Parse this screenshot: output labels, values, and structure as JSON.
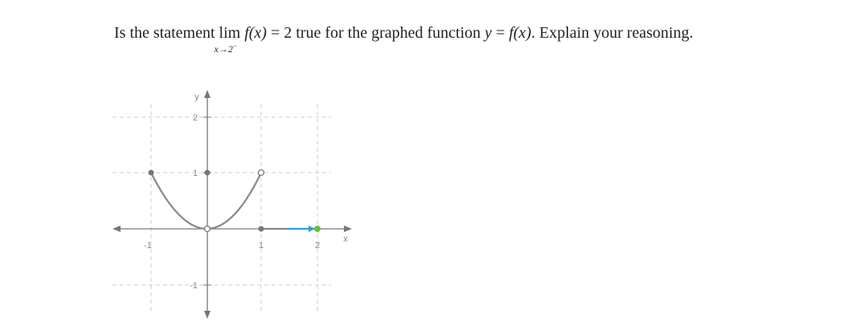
{
  "question": {
    "prefix": "Is the statement",
    "lim": "lim",
    "lim_sub": "x→2",
    "lim_sup": "−",
    "fx1": "f(x)",
    "eq1": "= 2",
    "middle": "true for the graphed function",
    "yvar": "y",
    "eq2": "=",
    "fx2": "f(x)",
    "suffix": ". Explain your reasoning."
  },
  "graph": {
    "y_axis_label": "y",
    "x_axis_label": "x",
    "y_tick_labels": [
      "2",
      "1",
      "-1"
    ],
    "x_tick_labels": [
      "-1",
      "1",
      "2"
    ]
  }
}
